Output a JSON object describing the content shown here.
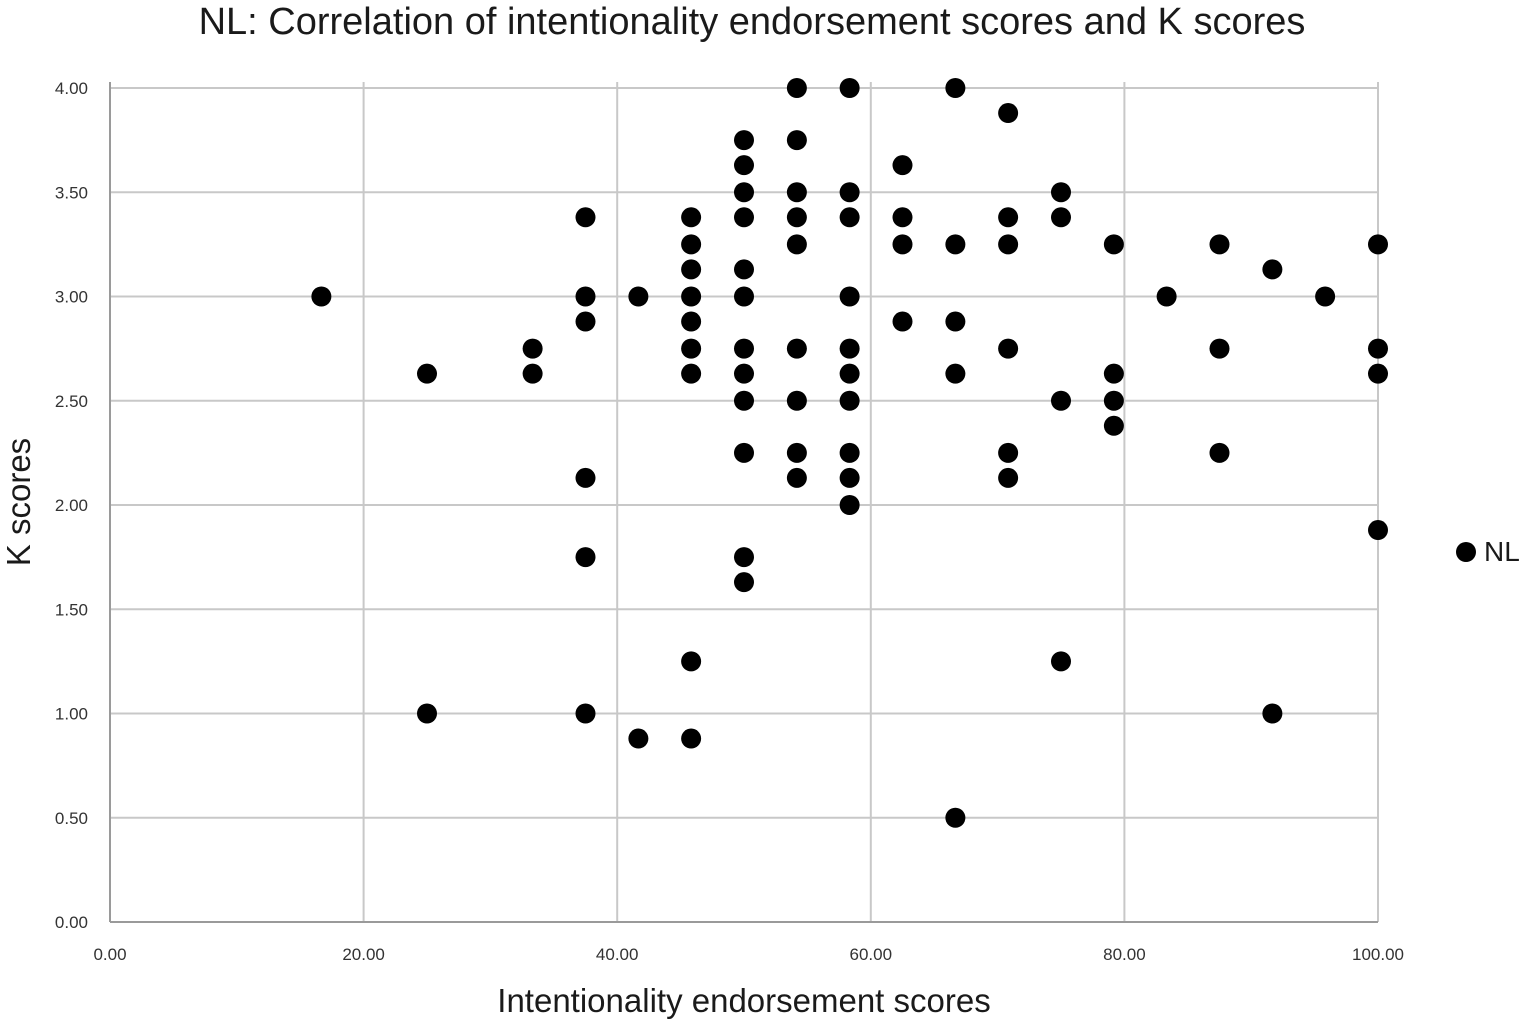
{
  "chart_data": {
    "type": "scatter",
    "title": "NL: Correlation of intentionality endorsement scores and K scores",
    "xlabel": "Intentionality endorsement scores",
    "ylabel": "K scores",
    "xlim": [
      0,
      100
    ],
    "ylim": [
      0,
      4
    ],
    "x_ticks": [
      "0.00",
      "20.00",
      "40.00",
      "60.00",
      "80.00",
      "100.00"
    ],
    "y_ticks": [
      "0.00",
      "0.50",
      "1.00",
      "1.50",
      "2.00",
      "2.50",
      "3.00",
      "3.50",
      "4.00"
    ],
    "grid": true,
    "legend_position": "right",
    "marker_color": "#000000",
    "series": [
      {
        "name": "NL",
        "points": [
          [
            16.67,
            3.0
          ],
          [
            25.0,
            2.63
          ],
          [
            25.0,
            1.0
          ],
          [
            33.33,
            2.75
          ],
          [
            33.33,
            2.63
          ],
          [
            37.5,
            3.38
          ],
          [
            37.5,
            3.0
          ],
          [
            37.5,
            2.88
          ],
          [
            37.5,
            2.13
          ],
          [
            37.5,
            1.75
          ],
          [
            37.5,
            1.0
          ],
          [
            41.67,
            3.0
          ],
          [
            41.67,
            0.88
          ],
          [
            45.83,
            3.38
          ],
          [
            45.83,
            3.25
          ],
          [
            45.83,
            3.13
          ],
          [
            45.83,
            3.0
          ],
          [
            45.83,
            2.88
          ],
          [
            45.83,
            2.75
          ],
          [
            45.83,
            2.63
          ],
          [
            45.83,
            1.25
          ],
          [
            45.83,
            0.88
          ],
          [
            50.0,
            3.75
          ],
          [
            50.0,
            3.63
          ],
          [
            50.0,
            3.5
          ],
          [
            50.0,
            3.38
          ],
          [
            50.0,
            3.13
          ],
          [
            50.0,
            3.0
          ],
          [
            50.0,
            2.75
          ],
          [
            50.0,
            2.63
          ],
          [
            50.0,
            2.5
          ],
          [
            50.0,
            2.25
          ],
          [
            50.0,
            1.75
          ],
          [
            50.0,
            1.63
          ],
          [
            54.17,
            4.0
          ],
          [
            54.17,
            3.75
          ],
          [
            54.17,
            3.5
          ],
          [
            54.17,
            3.38
          ],
          [
            54.17,
            3.25
          ],
          [
            54.17,
            2.75
          ],
          [
            54.17,
            2.5
          ],
          [
            54.17,
            2.25
          ],
          [
            54.17,
            2.13
          ],
          [
            58.33,
            4.0
          ],
          [
            58.33,
            3.5
          ],
          [
            58.33,
            3.38
          ],
          [
            58.33,
            3.0
          ],
          [
            58.33,
            2.75
          ],
          [
            58.33,
            2.63
          ],
          [
            58.33,
            2.5
          ],
          [
            58.33,
            2.25
          ],
          [
            58.33,
            2.13
          ],
          [
            58.33,
            2.0
          ],
          [
            62.5,
            3.63
          ],
          [
            62.5,
            3.38
          ],
          [
            62.5,
            3.25
          ],
          [
            62.5,
            2.88
          ],
          [
            66.67,
            4.0
          ],
          [
            66.67,
            3.25
          ],
          [
            66.67,
            2.88
          ],
          [
            66.67,
            2.63
          ],
          [
            66.67,
            0.5
          ],
          [
            70.83,
            3.88
          ],
          [
            70.83,
            3.38
          ],
          [
            70.83,
            3.25
          ],
          [
            70.83,
            2.75
          ],
          [
            70.83,
            2.25
          ],
          [
            70.83,
            2.13
          ],
          [
            75.0,
            3.5
          ],
          [
            75.0,
            3.38
          ],
          [
            75.0,
            2.5
          ],
          [
            75.0,
            1.25
          ],
          [
            79.17,
            3.25
          ],
          [
            79.17,
            2.63
          ],
          [
            79.17,
            2.5
          ],
          [
            79.17,
            2.38
          ],
          [
            83.33,
            3.0
          ],
          [
            87.5,
            3.25
          ],
          [
            87.5,
            2.75
          ],
          [
            87.5,
            2.25
          ],
          [
            91.67,
            3.13
          ],
          [
            91.67,
            1.0
          ],
          [
            95.83,
            3.0
          ],
          [
            100.0,
            3.25
          ],
          [
            100.0,
            2.75
          ],
          [
            100.0,
            2.63
          ],
          [
            100.0,
            1.88
          ]
        ]
      }
    ]
  }
}
